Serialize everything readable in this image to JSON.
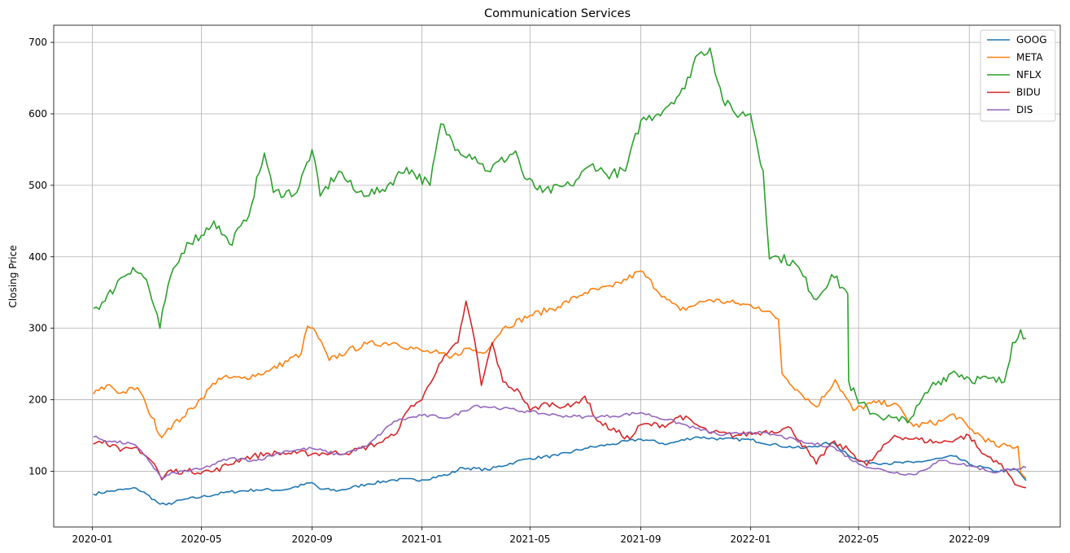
{
  "chart_data": {
    "type": "line",
    "title": "Communication Services",
    "xlabel": "",
    "ylabel": "Closing Price",
    "xlim": [
      "2019-11-19",
      "2022-12-11"
    ],
    "ylim": [
      22,
      724
    ],
    "x_ticks": [
      "2020-01",
      "2020-05",
      "2020-09",
      "2021-01",
      "2021-05",
      "2021-09",
      "2022-01",
      "2022-05",
      "2022-09"
    ],
    "y_ticks": [
      100,
      200,
      300,
      400,
      500,
      600,
      700
    ],
    "grid": true,
    "legend_position": "top-right",
    "series": [
      {
        "name": "GOOG",
        "color": "#1f77b4",
        "points": [
          [
            "2020-01-02",
            68
          ],
          [
            "2020-01-20",
            72
          ],
          [
            "2020-02-10",
            75
          ],
          [
            "2020-02-19",
            76
          ],
          [
            "2020-03-01",
            68
          ],
          [
            "2020-03-16",
            54
          ],
          [
            "2020-03-23",
            53
          ],
          [
            "2020-04-10",
            60
          ],
          [
            "2020-05-01",
            64
          ],
          [
            "2020-06-01",
            71
          ],
          [
            "2020-07-01",
            74
          ],
          [
            "2020-08-01",
            74
          ],
          [
            "2020-09-01",
            84
          ],
          [
            "2020-09-10",
            75
          ],
          [
            "2020-10-01",
            73
          ],
          [
            "2020-11-01",
            82
          ],
          [
            "2020-12-01",
            88
          ],
          [
            "2021-01-01",
            88
          ],
          [
            "2021-02-01",
            96
          ],
          [
            "2021-02-15",
            105
          ],
          [
            "2021-03-15",
            102
          ],
          [
            "2021-04-15",
            113
          ],
          [
            "2021-05-01",
            118
          ],
          [
            "2021-06-01",
            122
          ],
          [
            "2021-07-01",
            132
          ],
          [
            "2021-08-01",
            138
          ],
          [
            "2021-09-01",
            145
          ],
          [
            "2021-10-01",
            138
          ],
          [
            "2021-11-01",
            148
          ],
          [
            "2021-12-01",
            145
          ],
          [
            "2022-01-01",
            144
          ],
          [
            "2022-02-01",
            136
          ],
          [
            "2022-03-01",
            132
          ],
          [
            "2022-04-01",
            140
          ],
          [
            "2022-05-01",
            114
          ],
          [
            "2022-06-01",
            111
          ],
          [
            "2022-07-01",
            112
          ],
          [
            "2022-08-01",
            118
          ],
          [
            "2022-08-15",
            121
          ],
          [
            "2022-09-01",
            110
          ],
          [
            "2022-10-01",
            100
          ],
          [
            "2022-10-24",
            102
          ],
          [
            "2022-11-03",
            87
          ]
        ]
      },
      {
        "name": "META",
        "color": "#ff7f0e",
        "points": [
          [
            "2020-01-02",
            208
          ],
          [
            "2020-01-20",
            221
          ],
          [
            "2020-02-01",
            209
          ],
          [
            "2020-02-20",
            217
          ],
          [
            "2020-03-01",
            192
          ],
          [
            "2020-03-18",
            147
          ],
          [
            "2020-03-25",
            160
          ],
          [
            "2020-04-10",
            175
          ],
          [
            "2020-05-01",
            202
          ],
          [
            "2020-05-20",
            230
          ],
          [
            "2020-06-15",
            230
          ],
          [
            "2020-07-15",
            240
          ],
          [
            "2020-08-20",
            265
          ],
          [
            "2020-08-27",
            303
          ],
          [
            "2020-09-05",
            295
          ],
          [
            "2020-09-20",
            255
          ],
          [
            "2020-10-10",
            268
          ],
          [
            "2020-11-01",
            278
          ],
          [
            "2020-12-01",
            280
          ],
          [
            "2021-01-01",
            268
          ],
          [
            "2021-01-20",
            265
          ],
          [
            "2021-02-01",
            258
          ],
          [
            "2021-02-20",
            272
          ],
          [
            "2021-03-10",
            265
          ],
          [
            "2021-04-01",
            300
          ],
          [
            "2021-05-01",
            318
          ],
          [
            "2021-06-01",
            330
          ],
          [
            "2021-07-01",
            350
          ],
          [
            "2021-08-01",
            358
          ],
          [
            "2021-09-01",
            380
          ],
          [
            "2021-09-30",
            340
          ],
          [
            "2021-10-15",
            325
          ],
          [
            "2021-11-15",
            340
          ],
          [
            "2021-12-15",
            335
          ],
          [
            "2022-01-10",
            330
          ],
          [
            "2022-02-01",
            313
          ],
          [
            "2022-02-05",
            237
          ],
          [
            "2022-02-25",
            210
          ],
          [
            "2022-03-15",
            190
          ],
          [
            "2022-04-05",
            228
          ],
          [
            "2022-04-25",
            185
          ],
          [
            "2022-05-15",
            195
          ],
          [
            "2022-06-10",
            195
          ],
          [
            "2022-07-01",
            163
          ],
          [
            "2022-08-01",
            170
          ],
          [
            "2022-08-15",
            180
          ],
          [
            "2022-09-01",
            160
          ],
          [
            "2022-10-01",
            135
          ],
          [
            "2022-10-25",
            135
          ],
          [
            "2022-10-28",
            98
          ],
          [
            "2022-11-03",
            90
          ]
        ]
      },
      {
        "name": "NFLX",
        "color": "#2ca02c",
        "points": [
          [
            "2020-01-02",
            328
          ],
          [
            "2020-01-15",
            338
          ],
          [
            "2020-02-01",
            370
          ],
          [
            "2020-02-15",
            385
          ],
          [
            "2020-03-01",
            368
          ],
          [
            "2020-03-16",
            300
          ],
          [
            "2020-03-25",
            360
          ],
          [
            "2020-04-15",
            420
          ],
          [
            "2020-05-01",
            430
          ],
          [
            "2020-05-15",
            450
          ],
          [
            "2020-06-01",
            418
          ],
          [
            "2020-06-20",
            450
          ],
          [
            "2020-07-10",
            545
          ],
          [
            "2020-07-20",
            490
          ],
          [
            "2020-08-15",
            490
          ],
          [
            "2020-09-01",
            550
          ],
          [
            "2020-09-10",
            485
          ],
          [
            "2020-10-01",
            520
          ],
          [
            "2020-10-20",
            490
          ],
          [
            "2020-11-15",
            490
          ],
          [
            "2020-12-15",
            525
          ],
          [
            "2021-01-10",
            500
          ],
          [
            "2021-01-22",
            586
          ],
          [
            "2021-02-10",
            550
          ],
          [
            "2021-03-01",
            540
          ],
          [
            "2021-03-15",
            520
          ],
          [
            "2021-04-15",
            548
          ],
          [
            "2021-04-25",
            510
          ],
          [
            "2021-05-15",
            490
          ],
          [
            "2021-06-15",
            500
          ],
          [
            "2021-07-10",
            530
          ],
          [
            "2021-07-25",
            515
          ],
          [
            "2021-08-15",
            520
          ],
          [
            "2021-09-01",
            590
          ],
          [
            "2021-09-20",
            600
          ],
          [
            "2021-10-20",
            635
          ],
          [
            "2021-11-01",
            680
          ],
          [
            "2021-11-17",
            692
          ],
          [
            "2021-12-01",
            620
          ],
          [
            "2021-12-15",
            600
          ],
          [
            "2022-01-01",
            600
          ],
          [
            "2022-01-15",
            520
          ],
          [
            "2022-01-22",
            397
          ],
          [
            "2022-02-01",
            400
          ],
          [
            "2022-02-20",
            390
          ],
          [
            "2022-03-15",
            340
          ],
          [
            "2022-04-01",
            375
          ],
          [
            "2022-04-19",
            348
          ],
          [
            "2022-04-20",
            226
          ],
          [
            "2022-05-01",
            195
          ],
          [
            "2022-05-20",
            180
          ],
          [
            "2022-06-15",
            170
          ],
          [
            "2022-07-01",
            178
          ],
          [
            "2022-07-20",
            218
          ],
          [
            "2022-08-15",
            240
          ],
          [
            "2022-09-01",
            230
          ],
          [
            "2022-10-10",
            225
          ],
          [
            "2022-10-19",
            280
          ],
          [
            "2022-10-28",
            298
          ],
          [
            "2022-11-03",
            286
          ]
        ]
      },
      {
        "name": "BIDU",
        "color": "#d62728",
        "points": [
          [
            "2020-01-02",
            138
          ],
          [
            "2020-01-15",
            143
          ],
          [
            "2020-02-01",
            128
          ],
          [
            "2020-02-20",
            133
          ],
          [
            "2020-03-10",
            110
          ],
          [
            "2020-03-18",
            88
          ],
          [
            "2020-03-25",
            100
          ],
          [
            "2020-04-15",
            100
          ],
          [
            "2020-05-15",
            100
          ],
          [
            "2020-06-15",
            118
          ],
          [
            "2020-07-15",
            125
          ],
          [
            "2020-08-15",
            125
          ],
          [
            "2020-09-15",
            125
          ],
          [
            "2020-10-15",
            127
          ],
          [
            "2020-11-15",
            140
          ],
          [
            "2020-12-01",
            150
          ],
          [
            "2020-12-20",
            192
          ],
          [
            "2021-01-01",
            200
          ],
          [
            "2021-01-20",
            250
          ],
          [
            "2021-02-10",
            280
          ],
          [
            "2021-02-19",
            338
          ],
          [
            "2021-03-01",
            280
          ],
          [
            "2021-03-08",
            220
          ],
          [
            "2021-03-20",
            280
          ],
          [
            "2021-04-01",
            225
          ],
          [
            "2021-04-20",
            210
          ],
          [
            "2021-05-01",
            185
          ],
          [
            "2021-05-20",
            195
          ],
          [
            "2021-06-15",
            190
          ],
          [
            "2021-07-01",
            205
          ],
          [
            "2021-07-15",
            170
          ],
          [
            "2021-08-20",
            145
          ],
          [
            "2021-09-01",
            165
          ],
          [
            "2021-10-01",
            165
          ],
          [
            "2021-10-15",
            178
          ],
          [
            "2021-11-15",
            155
          ],
          [
            "2021-12-15",
            150
          ],
          [
            "2022-01-15",
            155
          ],
          [
            "2022-02-15",
            160
          ],
          [
            "2022-03-15",
            110
          ],
          [
            "2022-04-01",
            140
          ],
          [
            "2022-04-20",
            130
          ],
          [
            "2022-05-10",
            108
          ],
          [
            "2022-06-10",
            150
          ],
          [
            "2022-07-01",
            145
          ],
          [
            "2022-08-01",
            140
          ],
          [
            "2022-09-01",
            150
          ],
          [
            "2022-09-15",
            125
          ],
          [
            "2022-10-01",
            115
          ],
          [
            "2022-10-15",
            95
          ],
          [
            "2022-10-25",
            80
          ],
          [
            "2022-11-03",
            77
          ]
        ]
      },
      {
        "name": "DIS",
        "color": "#9467bd",
        "points": [
          [
            "2020-01-02",
            148
          ],
          [
            "2020-01-20",
            142
          ],
          [
            "2020-02-15",
            138
          ],
          [
            "2020-03-01",
            120
          ],
          [
            "2020-03-18",
            90
          ],
          [
            "2020-04-01",
            98
          ],
          [
            "2020-05-01",
            103
          ],
          [
            "2020-06-01",
            118
          ],
          [
            "2020-07-01",
            115
          ],
          [
            "2020-08-01",
            128
          ],
          [
            "2020-09-01",
            132
          ],
          [
            "2020-10-01",
            123
          ],
          [
            "2020-11-01",
            135
          ],
          [
            "2020-12-01",
            170
          ],
          [
            "2021-01-01",
            178
          ],
          [
            "2021-02-01",
            175
          ],
          [
            "2021-03-01",
            192
          ],
          [
            "2021-04-01",
            188
          ],
          [
            "2021-05-01",
            183
          ],
          [
            "2021-06-01",
            178
          ],
          [
            "2021-07-01",
            176
          ],
          [
            "2021-08-01",
            177
          ],
          [
            "2021-09-01",
            182
          ],
          [
            "2021-10-01",
            172
          ],
          [
            "2021-11-01",
            160
          ],
          [
            "2021-12-01",
            150
          ],
          [
            "2022-01-01",
            155
          ],
          [
            "2022-02-01",
            150
          ],
          [
            "2022-03-01",
            140
          ],
          [
            "2022-04-01",
            135
          ],
          [
            "2022-05-01",
            110
          ],
          [
            "2022-06-01",
            100
          ],
          [
            "2022-07-01",
            95
          ],
          [
            "2022-08-01",
            115
          ],
          [
            "2022-09-01",
            108
          ],
          [
            "2022-10-01",
            98
          ],
          [
            "2022-10-20",
            104
          ],
          [
            "2022-11-03",
            105
          ]
        ]
      }
    ]
  }
}
